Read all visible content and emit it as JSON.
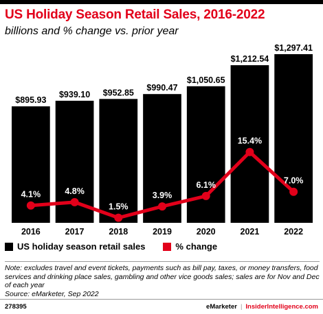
{
  "header": {
    "title": "US Holiday Season Retail Sales, 2016-2022",
    "subtitle": "billions and % change vs. prior year"
  },
  "legend": {
    "sales_label": "US holiday season retail sales",
    "change_label": "% change"
  },
  "notes": {
    "note": "Note: excludes travel and event tickets, payments such as bill pay, taxes, or money transfers, food services and drinking place sales, gambling and other vice goods sales; sales are for Nov and Dec of each year",
    "source": "Source: eMarketer, Sep 2022"
  },
  "footer": {
    "chart_id": "278395",
    "brand_emarketer": "eMarketer",
    "separator": "|",
    "brand_ii": "InsiderIntelligence.com"
  },
  "colors": {
    "title": "#e2001a",
    "bars": "#000000",
    "line": "#e2001a"
  },
  "chart_data": {
    "type": "bar",
    "categories": [
      "2016",
      "2017",
      "2018",
      "2019",
      "2020",
      "2021",
      "2022"
    ],
    "series": [
      {
        "name": "US holiday season retail sales",
        "type": "bar",
        "values": [
          895.93,
          939.1,
          952.85,
          990.47,
          1050.65,
          1212.54,
          1297.41
        ],
        "labels": [
          "$895.93",
          "$939.10",
          "$952.85",
          "$990.47",
          "$1,050.65",
          "$1,212.54",
          "$1,297.41"
        ]
      },
      {
        "name": "% change",
        "type": "line",
        "values": [
          4.1,
          4.8,
          1.5,
          3.9,
          6.1,
          15.4,
          7.0
        ],
        "labels": [
          "4.1%",
          "4.8%",
          "1.5%",
          "3.9%",
          "6.1%",
          "15.4%",
          "7.0%"
        ]
      }
    ],
    "title": "US Holiday Season Retail Sales, 2016-2022",
    "subtitle": "billions and % change vs. prior year",
    "legend_position": "bottom-left",
    "grid": false
  }
}
